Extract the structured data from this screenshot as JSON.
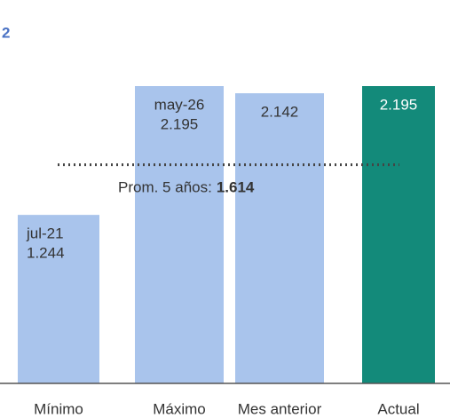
{
  "chart_data": {
    "type": "bar",
    "panel_label": "2",
    "categories": [
      "Mínimo",
      "Máximo",
      "Mes anterior",
      "Actual"
    ],
    "values": [
      1.244,
      2.195,
      2.142,
      2.195
    ],
    "date_labels": [
      "jul-21",
      "may-26",
      null,
      null
    ],
    "colors": [
      "#a9c4ec",
      "#a9c4ec",
      "#a9c4ec",
      "#138a7a"
    ],
    "average": {
      "label": "Prom. 5 años:",
      "value": 1.614
    }
  }
}
